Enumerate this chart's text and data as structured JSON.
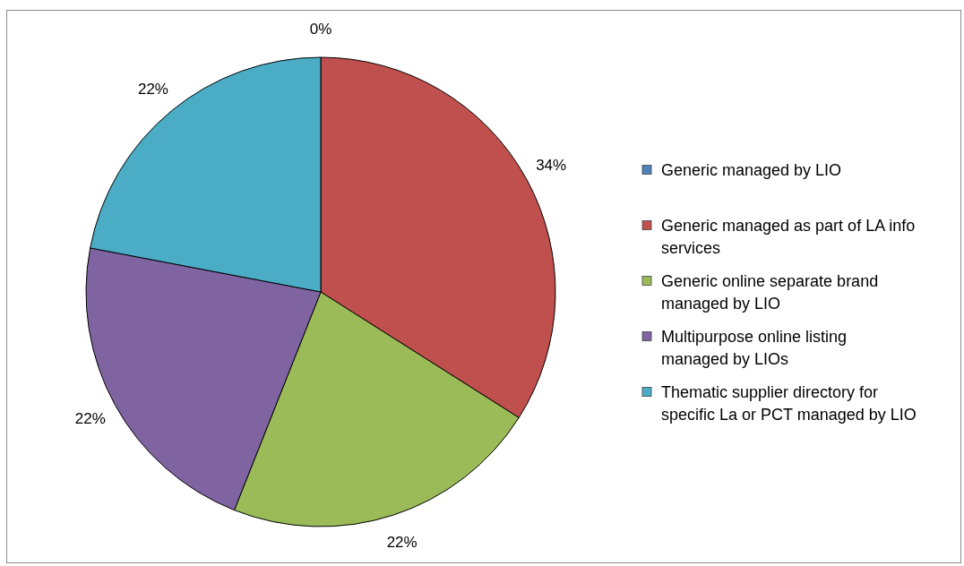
{
  "chart_data": {
    "type": "pie",
    "categories": [
      "Generic managed by LIO",
      "Generic managed as part of LA info services",
      "Generic online separate brand managed by LIO",
      "Multipurpose online listing managed by LIOs",
      "Thematic supplier directory for specific La or PCT managed by LIO"
    ],
    "values": [
      0,
      34,
      22,
      22,
      22
    ],
    "colors": [
      "#4f81bd",
      "#c0504d",
      "#9bbb59",
      "#8064a2",
      "#4bacc6"
    ],
    "value_labels": [
      "0%",
      "34%",
      "22%",
      "22%",
      "22%"
    ],
    "legend": "right"
  }
}
